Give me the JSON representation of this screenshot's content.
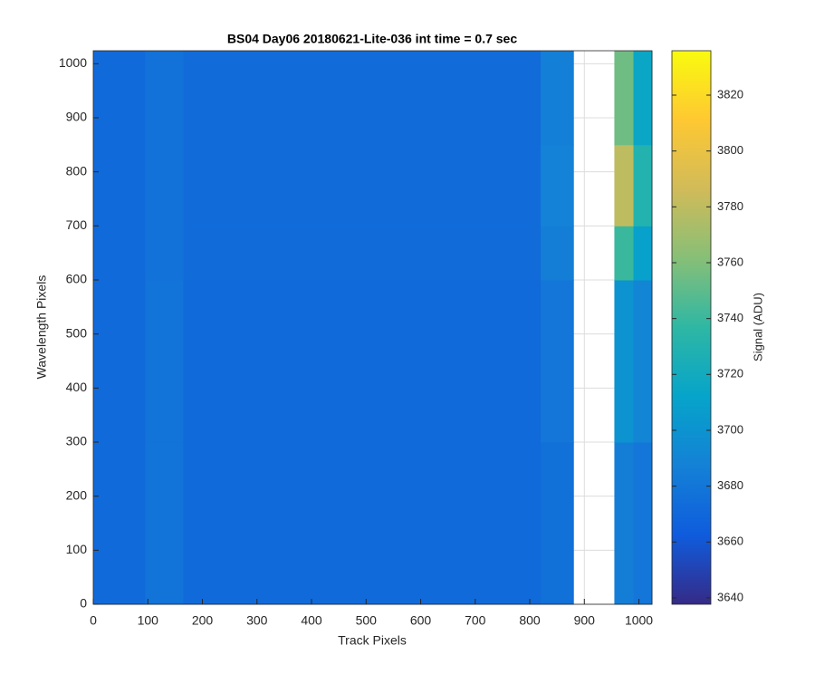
{
  "chart_data": {
    "type": "heatmap",
    "title": "BS04 Day06 20180621-Lite-036 int time = 0.7 sec",
    "xlabel": "Track Pixels",
    "ylabel": "Wavelength Pixels",
    "colorbar_label": "Signal (ADU)",
    "xlim": [
      0,
      1024
    ],
    "ylim": [
      0,
      1024
    ],
    "xticks": [
      0,
      100,
      200,
      300,
      400,
      500,
      600,
      700,
      800,
      900,
      1000
    ],
    "yticks": [
      0,
      100,
      200,
      300,
      400,
      500,
      600,
      700,
      800,
      900,
      1000
    ],
    "grid": true,
    "x_edges": [
      0,
      95,
      165,
      820,
      880,
      955,
      990,
      1024
    ],
    "y_edges": [
      0,
      300,
      600,
      700,
      850,
      1024
    ],
    "values": [
      [
        3672,
        3678,
        3672,
        3676,
        null,
        3685,
        3680
      ],
      [
        3672,
        3678,
        3672,
        3680,
        null,
        3700,
        3690
      ],
      [
        3672,
        3677,
        3673,
        3685,
        null,
        3740,
        3710
      ],
      [
        3672,
        3677,
        3673,
        3688,
        null,
        3780,
        3730
      ],
      [
        3672,
        3677,
        3673,
        3686,
        null,
        3755,
        3715
      ]
    ],
    "clim": [
      3637.7,
      3835.9
    ],
    "cticks": [
      3640,
      3660,
      3680,
      3700,
      3720,
      3740,
      3760,
      3780,
      3800,
      3820
    ],
    "colormap": [
      "#352a87",
      "#0f5cdd",
      "#1481d6",
      "#06a4ca",
      "#2eb7a4",
      "#87bf77",
      "#d1bb59",
      "#fec832",
      "#f9fb0e"
    ]
  }
}
